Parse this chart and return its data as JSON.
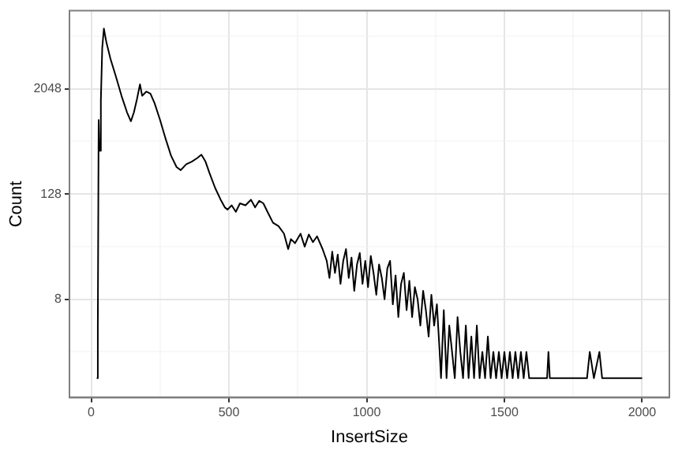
{
  "chart_data": {
    "type": "line",
    "xlabel": "InsertSize",
    "ylabel": "Count",
    "log": true,
    "grid": true,
    "marker": "none",
    "xlim": [
      -79,
      2099
    ],
    "ylim": [
      0.63,
      16000
    ],
    "xticks": [
      0,
      {
        "value": 250,
        "label": null
      },
      500,
      {
        "value": 750,
        "label": null
      },
      1000,
      {
        "value": 1250,
        "label": null
      },
      1500,
      {
        "value": 1750,
        "label": null
      },
      2000
    ],
    "yticks": [
      {
        "value": 2,
        "label": null
      },
      8,
      {
        "value": 32,
        "label": null
      },
      128,
      {
        "value": 512,
        "label": null
      },
      2048,
      {
        "value": 8192,
        "label": null
      }
    ],
    "x": [
      20,
      24,
      27,
      30,
      35,
      40,
      46,
      50,
      55,
      70,
      90,
      110,
      130,
      144,
      155,
      165,
      177,
      185,
      200,
      215,
      230,
      250,
      270,
      290,
      310,
      325,
      345,
      365,
      385,
      400,
      415,
      430,
      450,
      470,
      485,
      495,
      510,
      525,
      540,
      560,
      580,
      595,
      610,
      625,
      640,
      660,
      680,
      700,
      715,
      725,
      740,
      760,
      775,
      790,
      805,
      820,
      840,
      855,
      865,
      875,
      885,
      895,
      905,
      915,
      925,
      935,
      945,
      955,
      965,
      975,
      985,
      995,
      1005,
      1015,
      1025,
      1035,
      1045,
      1055,
      1065,
      1075,
      1085,
      1095,
      1105,
      1115,
      1125,
      1135,
      1145,
      1155,
      1165,
      1175,
      1185,
      1195,
      1205,
      1215,
      1225,
      1235,
      1245,
      1255,
      1265,
      1270,
      1280,
      1290,
      1300,
      1310,
      1320,
      1330,
      1340,
      1350,
      1360,
      1370,
      1380,
      1390,
      1400,
      1410,
      1420,
      1430,
      1440,
      1450,
      1460,
      1470,
      1480,
      1490,
      1500,
      1510,
      1520,
      1530,
      1540,
      1550,
      1560,
      1570,
      1580,
      1590,
      1600,
      1655,
      1660,
      1665,
      1800,
      1810,
      1825,
      1845,
      1855,
      2000
    ],
    "series": [
      {
        "color": "#000000",
        "values": [
          1,
          4,
          900,
          400,
          1500,
          6000,
          10000,
          8500,
          7000,
          4500,
          2800,
          1700,
          1100,
          870,
          1100,
          1500,
          2300,
          1700,
          1900,
          1800,
          1400,
          900,
          550,
          350,
          260,
          240,
          280,
          300,
          330,
          360,
          300,
          220,
          150,
          110,
          90,
          85,
          95,
          80,
          100,
          95,
          110,
          90,
          107,
          100,
          80,
          60,
          55,
          45,
          30,
          39,
          35,
          45,
          32,
          44,
          36,
          42,
          30,
          22,
          14,
          28,
          16,
          26,
          12,
          22,
          30,
          14,
          24,
          10,
          20,
          27,
          12,
          22,
          11,
          25,
          16,
          9,
          20,
          14,
          8,
          18,
          22,
          7,
          15,
          5,
          12,
          16,
          6,
          13,
          5,
          11,
          8,
          4,
          10,
          6,
          3,
          9,
          4,
          7,
          2,
          1,
          6,
          1,
          4,
          2,
          1,
          5,
          2,
          1,
          4,
          1,
          3,
          1,
          4,
          1,
          2,
          1,
          3,
          1,
          2,
          1,
          2,
          1,
          2,
          1,
          2,
          1,
          2,
          1,
          2,
          1,
          2,
          1,
          1,
          1,
          2,
          1,
          1,
          2,
          1,
          2,
          1,
          1
        ]
      }
    ]
  }
}
